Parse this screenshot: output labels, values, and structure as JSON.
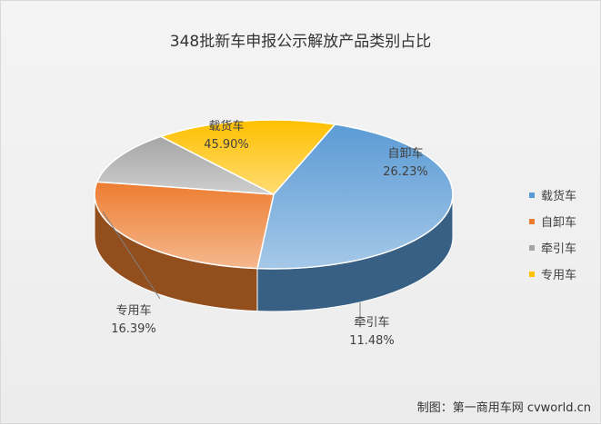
{
  "chart_data": {
    "type": "pie",
    "title": "348批新车申报公示解放产品类别占比",
    "slices": [
      {
        "name": "载货车",
        "label": "载货车",
        "value": 45.9,
        "value_text": "45.90%",
        "color": "#5b9bd5"
      },
      {
        "name": "自卸车",
        "label": "自卸车",
        "value": 26.23,
        "value_text": "26.23%",
        "color": "#ed7d31"
      },
      {
        "name": "牵引车",
        "label": "牵引车",
        "value": 11.48,
        "value_text": "11.48%",
        "color": "#a5a5a5"
      },
      {
        "name": "专用车",
        "label": "专用车",
        "value": 16.39,
        "value_text": "16.39%",
        "color": "#ffc000"
      }
    ],
    "legend_position": "right",
    "style": "3d"
  },
  "footer": {
    "source": "制图：第一商用车网 cvworld.cn"
  }
}
